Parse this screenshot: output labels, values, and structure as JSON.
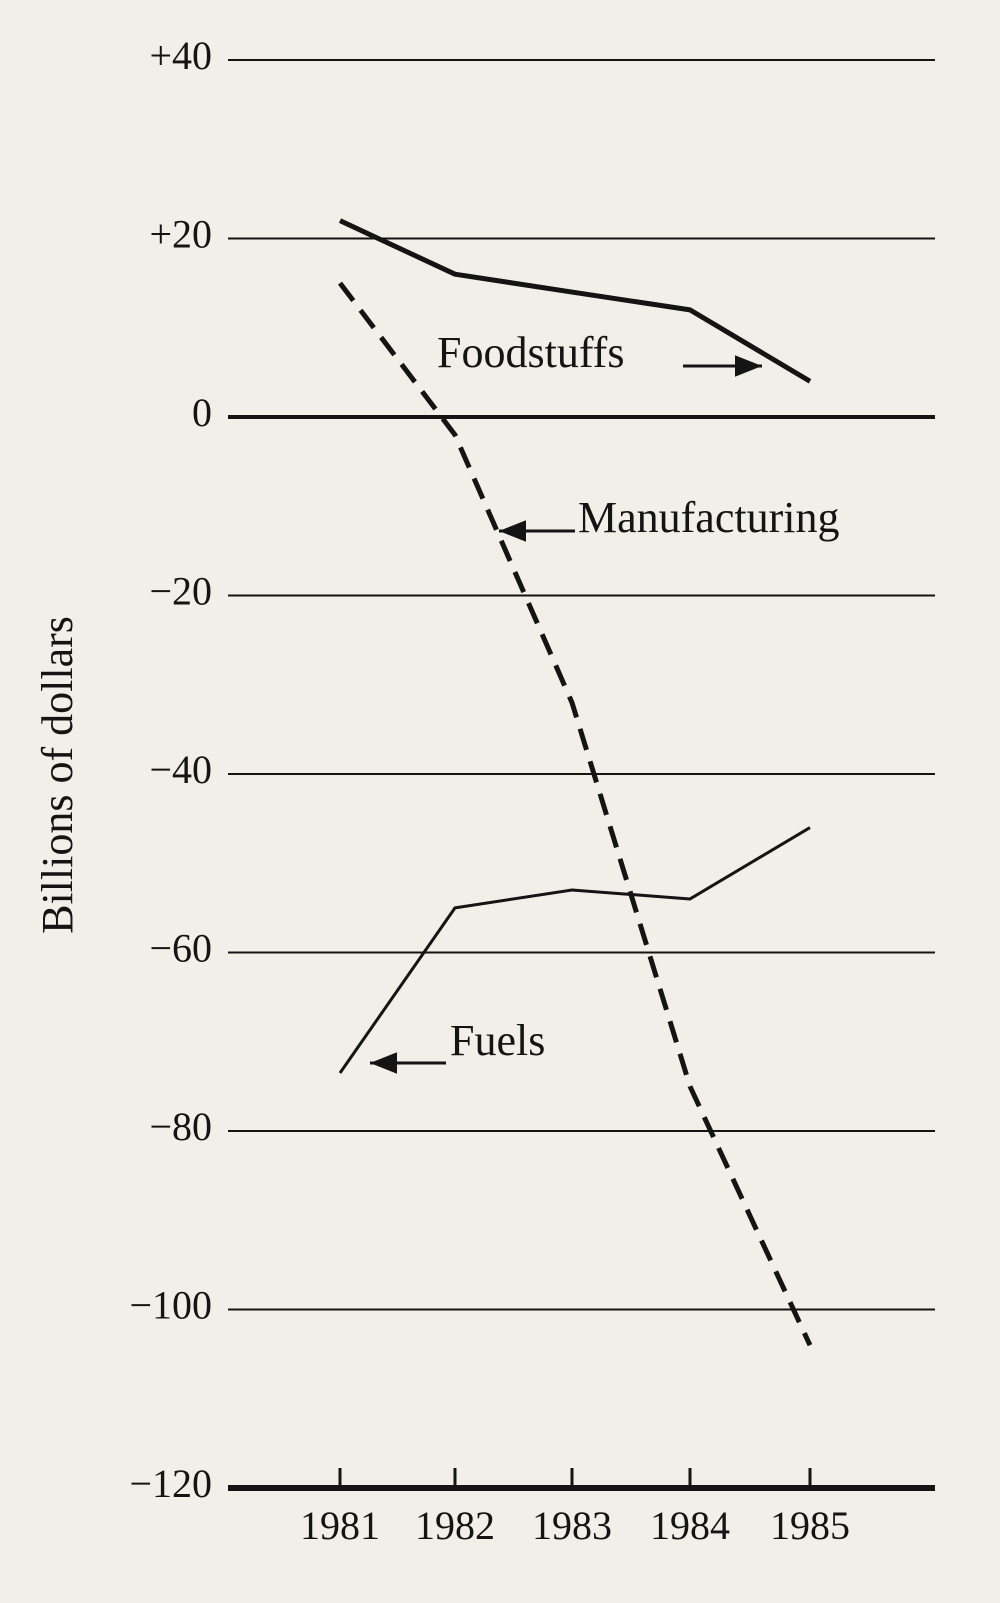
{
  "chart_data": {
    "type": "line",
    "y_label": "Billions of dollars",
    "categories": [
      "1981",
      "1982",
      "1983",
      "1984",
      "1985"
    ],
    "series": [
      {
        "name": "Foodstuffs",
        "color": "#141414",
        "style": "solid",
        "values": [
          22,
          16,
          14,
          12,
          4
        ]
      },
      {
        "name": "Manufacturing",
        "color": "#141414",
        "style": "dashed",
        "values": [
          15,
          -2,
          -32,
          -75,
          -104
        ]
      },
      {
        "name": "Fuels",
        "color": "#141414",
        "style": "solid",
        "values": [
          -73.5,
          -55,
          -53,
          -54,
          -46
        ]
      }
    ],
    "ylim": [
      -120,
      40
    ],
    "yticks": [
      {
        "value": 40,
        "label": "+40"
      },
      {
        "value": 20,
        "label": "+20"
      },
      0,
      {
        "value": -20,
        "label": "−20"
      },
      {
        "value": -40,
        "label": "−40"
      },
      {
        "value": -60,
        "label": "−60"
      },
      {
        "value": -80,
        "label": "−80"
      },
      {
        "value": -100,
        "label": "−100"
      },
      {
        "value": -120,
        "label": "−120"
      }
    ],
    "grid": true
  }
}
